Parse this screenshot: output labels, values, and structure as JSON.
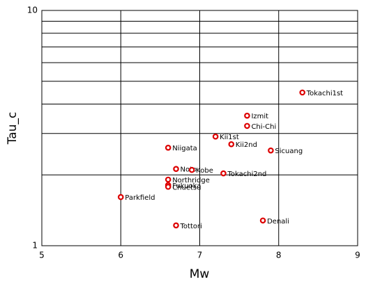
{
  "chart_data": {
    "type": "scatter",
    "xlabel": "Mw",
    "ylabel": "Tau_c",
    "labels": [
      "Tokachi1st",
      "Izmit",
      "Chi-Chi",
      "Kii1st",
      "Kii2nd",
      "Niigata",
      "Sicuang",
      "Noto",
      "Kobe",
      "Tokachi2nd",
      "Northridge",
      "Fukuoka",
      "Chuetsu",
      "Parkfield",
      "Denali",
      "Tottori"
    ],
    "x": [
      8.3,
      7.6,
      7.6,
      7.2,
      7.4,
      6.6,
      7.9,
      6.7,
      6.9,
      7.3,
      6.6,
      6.6,
      6.6,
      6.0,
      7.8,
      6.7
    ],
    "values": [
      4.48,
      3.57,
      3.23,
      2.91,
      2.7,
      2.61,
      2.54,
      2.12,
      2.1,
      2.03,
      1.91,
      1.81,
      1.78,
      1.61,
      1.28,
      1.22
    ],
    "color": "#dd0000",
    "xlim": [
      5,
      9
    ],
    "xticks": [
      5,
      6,
      7,
      8,
      9
    ],
    "ylim": [
      1,
      10
    ],
    "yticks": [
      1,
      10
    ],
    "yminorticks": [
      2,
      3,
      4,
      5,
      6,
      7,
      8,
      9
    ],
    "ylog": true,
    "grid": true
  }
}
